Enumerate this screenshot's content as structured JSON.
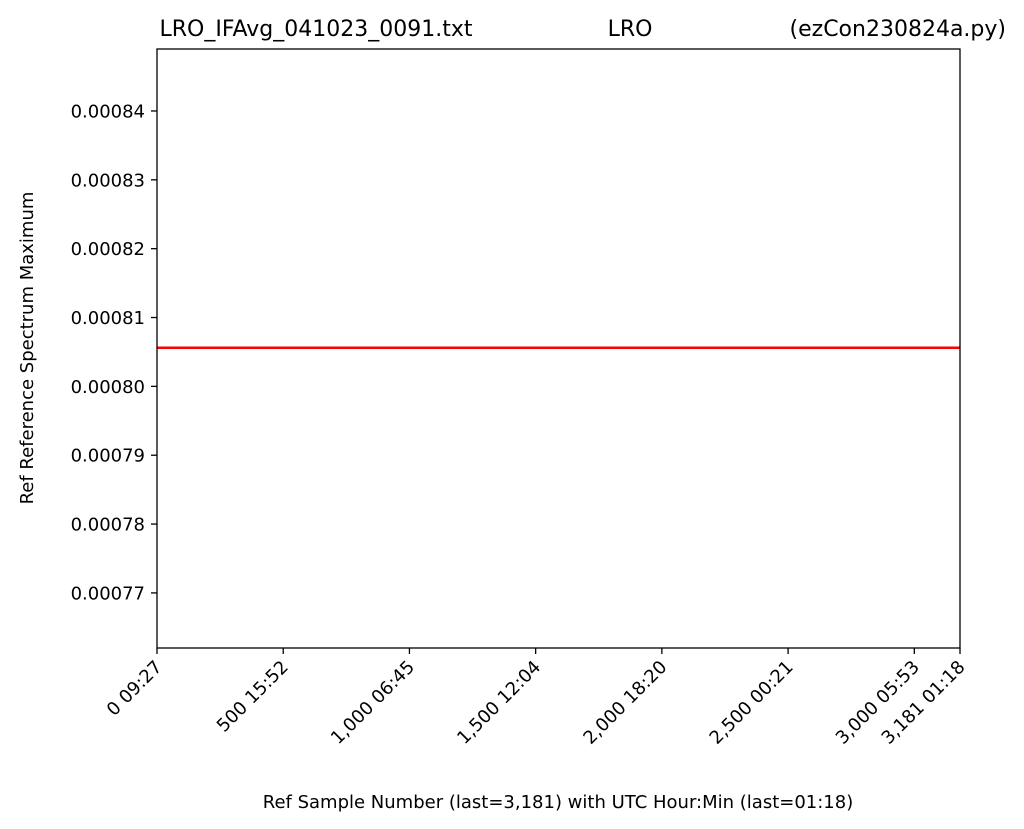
{
  "chart_data": {
    "type": "line",
    "title_parts": [
      "LRO_IFAvg_041023_0091.txt",
      "LRO",
      "(ezCon230824a.py)"
    ],
    "xlabel": "Ref Sample Number (last=3,181) with UTC Hour:Min (last=01:18)",
    "ylabel": "Ref Reference Spectrum Maximum",
    "xlim": [
      0,
      3181
    ],
    "ylim": [
      0.000762,
      0.000849
    ],
    "yticks": [
      0.00077,
      0.00078,
      0.00079,
      0.0008,
      0.00081,
      0.00082,
      0.00083,
      0.00084
    ],
    "ytick_labels": [
      "0.00077",
      "0.00078",
      "0.00079",
      "0.00080",
      "0.00081",
      "0.00082",
      "0.00083",
      "0.00084"
    ],
    "xticks": [
      0,
      500,
      1000,
      1500,
      2000,
      2500,
      3000,
      3181
    ],
    "xtick_labels": [
      "0  09:27",
      "500  15:52",
      "1,000  06:45",
      "1,500  12:04",
      "2,000  18:20",
      "2,500  00:21",
      "3,000  05:53",
      "3,181  01:18"
    ],
    "grid": false,
    "series": [
      {
        "color": "#ff0000",
        "x": [
          0,
          3181
        ],
        "y": [
          0.0008056,
          0.0008056
        ]
      }
    ]
  }
}
